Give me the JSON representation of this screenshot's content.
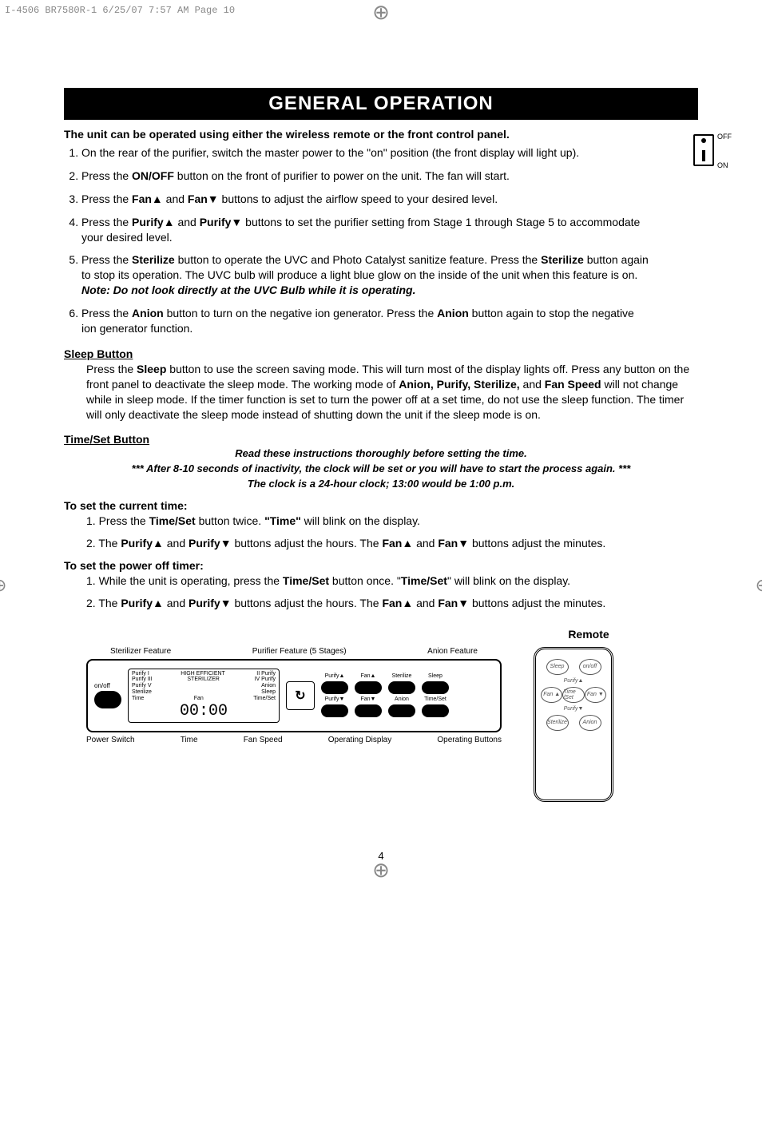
{
  "meta": {
    "header": "I-4506 BR7580R-1   6/25/07   7:57 AM   Page 10"
  },
  "title": "GENERAL OPERATION",
  "intro": "The unit can be operated using either the wireless remote or the front control panel.",
  "switch": {
    "off": "OFF",
    "on": "ON"
  },
  "steps": {
    "s1": "On the rear of the purifier, switch the master power to the \"on\" position (the front display will light up).",
    "s2a": "Press the ",
    "s2b": "ON/OFF",
    "s2c": " button on the front of purifier to power on the unit.   The fan will start.",
    "s3a": "Press the ",
    "s3b": "Fan▲",
    "s3c": " and ",
    "s3d": "Fan▼",
    "s3e": " buttons to adjust the airflow speed to your desired level.",
    "s4a": "Press the ",
    "s4b": "Purify▲",
    "s4c": " and ",
    "s4d": "Purify▼",
    "s4e": " buttons to set the purifier setting from Stage 1 through Stage 5 to accommodate your desired level.",
    "s5a": "Press the ",
    "s5b": "Sterilize",
    "s5c": " button to operate the UVC and Photo Catalyst sanitize feature.   Press the ",
    "s5d": "Sterilize",
    "s5e": " button again to stop its operation.   The UVC bulb will produce a light blue glow on the inside of the unit when this feature is on.   ",
    "s5f": "Note: Do not look directly at the UVC Bulb while it is operating.",
    "s6a": "Press the ",
    "s6b": "Anion",
    "s6c": " button to turn on the negative ion generator.  Press the ",
    "s6d": "Anion",
    "s6e": " button again to stop the negative ion generator function."
  },
  "sleep": {
    "head": "Sleep Button",
    "p1a": "Press the ",
    "p1b": "Sleep",
    "p1c": " button to use the screen saving mode.   This will turn most of the display lights off.   Press any button on the front panel to deactivate the sleep mode. The working mode of ",
    "p1d": "Anion, Purify, Sterilize,",
    "p1e": " and ",
    "p1f": "Fan Speed",
    "p1g": " will not change while in sleep mode.  If the timer function is set to turn the power off at a set time, do not use the sleep function.  The timer will only deactivate the sleep mode instead of shutting down the unit if the sleep mode is on."
  },
  "timeset": {
    "head": "Time/Set Button",
    "c1": "Read these instructions thoroughly before setting the time.",
    "c2": "*** After 8-10 seconds of inactivity, the clock will be set or you will have to start the process again. ***",
    "c3": "The clock is a 24-hour clock; 13:00 would be 1:00 p.m."
  },
  "curtime": {
    "head": "To set the current time:",
    "l1a": "1.  Press the ",
    "l1b": "Time/Set",
    "l1c": " button twice.   ",
    "l1d": "\"Time\"",
    "l1e": " will blink on the display.",
    "l2a": "2.  The ",
    "l2b": "Purify▲",
    "l2c": " and ",
    "l2d": "Purify▼",
    "l2e": " buttons adjust the hours.  The ",
    "l2f": "Fan▲",
    "l2g": " and ",
    "l2h": "Fan▼",
    "l2i": " buttons adjust the minutes."
  },
  "offtimer": {
    "head": "To set the power off timer:",
    "l1a": "1.  While the unit is operating, press the ",
    "l1b": "Time/Set",
    "l1c": " button once.   \"",
    "l1d": "Time/Set",
    "l1e": "\" will blink on  the display.",
    "l2a": "2.  The ",
    "l2b": "Purify▲",
    "l2c": " and ",
    "l2d": "Purify▼",
    "l2e": " buttons adjust the hours.   The ",
    "l2f": "Fan▲",
    "l2g": " and ",
    "l2h": "Fan▼",
    "l2i": " buttons adjust the minutes."
  },
  "remote_title": "Remote",
  "panel": {
    "top1": "Sterilizer Feature",
    "top2": "Purifier Feature (5 Stages)",
    "top3": "Anion Feature",
    "onoff": "on/off",
    "lcd_l1": "Purify I",
    "lcd_l2": "Purify III",
    "lcd_l3": "Purify V",
    "lcd_l4": "Sterilize",
    "lcd_mid1": "HIGH EFFICIENT",
    "lcd_mid2": "STERILIZER",
    "lcd_r1": "II Purify",
    "lcd_r2": "IV Purify",
    "lcd_r3": "Anion",
    "lcd_r4": "Sleep",
    "lcd_b1": "Time",
    "lcd_b2": "Fan",
    "lcd_b3": "Time/Set",
    "lcd_time": "00:00",
    "bt1": "Purify▲",
    "bt2": "Fan▲",
    "bt3": "Sterilize",
    "bt4": "Sleep",
    "bb1": "Purify▼",
    "bb2": "Fan▼",
    "bb3": "Anion",
    "bb4": "Time/Set",
    "bot1": "Power Switch",
    "bot2": "Time",
    "bot3": "Fan Speed",
    "bot4": "Operating Display",
    "bot5": "Operating Buttons"
  },
  "remote": {
    "b1": "Sleep",
    "b2": "on/off",
    "l1": "Purify▲",
    "b3": "Fan ▲",
    "b4": "Time /Set",
    "b5": "Fan ▼",
    "l2": "Purify▼",
    "b6": "Sterilize",
    "b7": "Anion"
  },
  "pagenum": "4"
}
